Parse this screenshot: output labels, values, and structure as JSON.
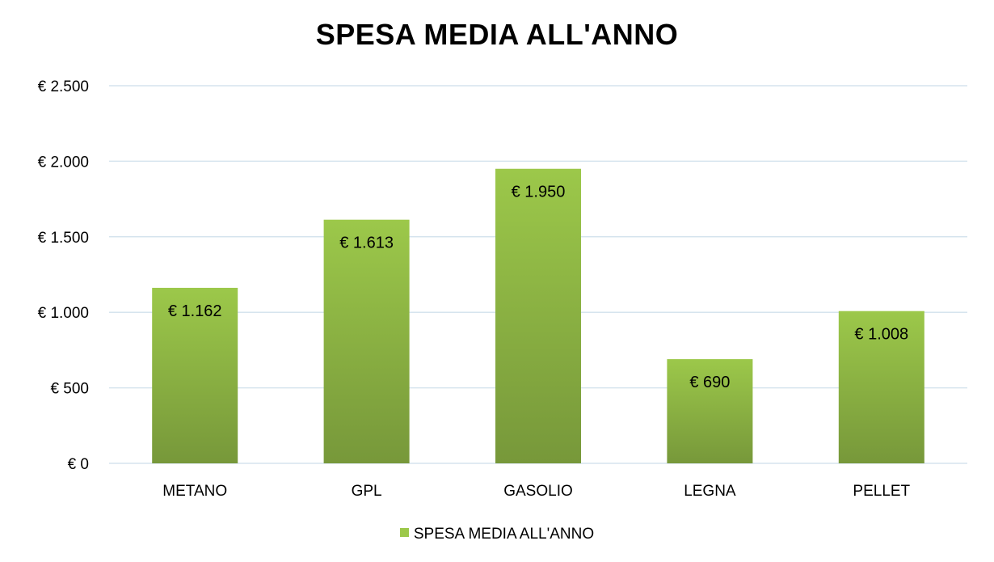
{
  "chart_data": {
    "type": "bar",
    "title": "SPESA MEDIA ALL'ANNO",
    "categories": [
      "METANO",
      "GPL",
      "GASOLIO",
      "LEGNA",
      "PELLET"
    ],
    "series": [
      {
        "name": "SPESA MEDIA ALL'ANNO",
        "values": [
          1162,
          1613,
          1950,
          690,
          1008
        ]
      }
    ],
    "data_labels": [
      "€ 1.162",
      "€ 1.613",
      "€ 1.950",
      "€ 690",
      "€ 1.008"
    ],
    "y_ticks": [
      0,
      500,
      1000,
      1500,
      2000,
      2500
    ],
    "y_tick_labels": [
      "€ 0",
      "€ 500",
      "€ 1.000",
      "€ 1.500",
      "€ 2.000",
      "€ 2.500"
    ],
    "ylim": [
      0,
      2500
    ],
    "grid": true,
    "legend_position": "bottom",
    "colors": {
      "bar_top": "#9cc84a",
      "bar_bottom": "#77983a",
      "gridline": "#d6e4ee"
    }
  }
}
